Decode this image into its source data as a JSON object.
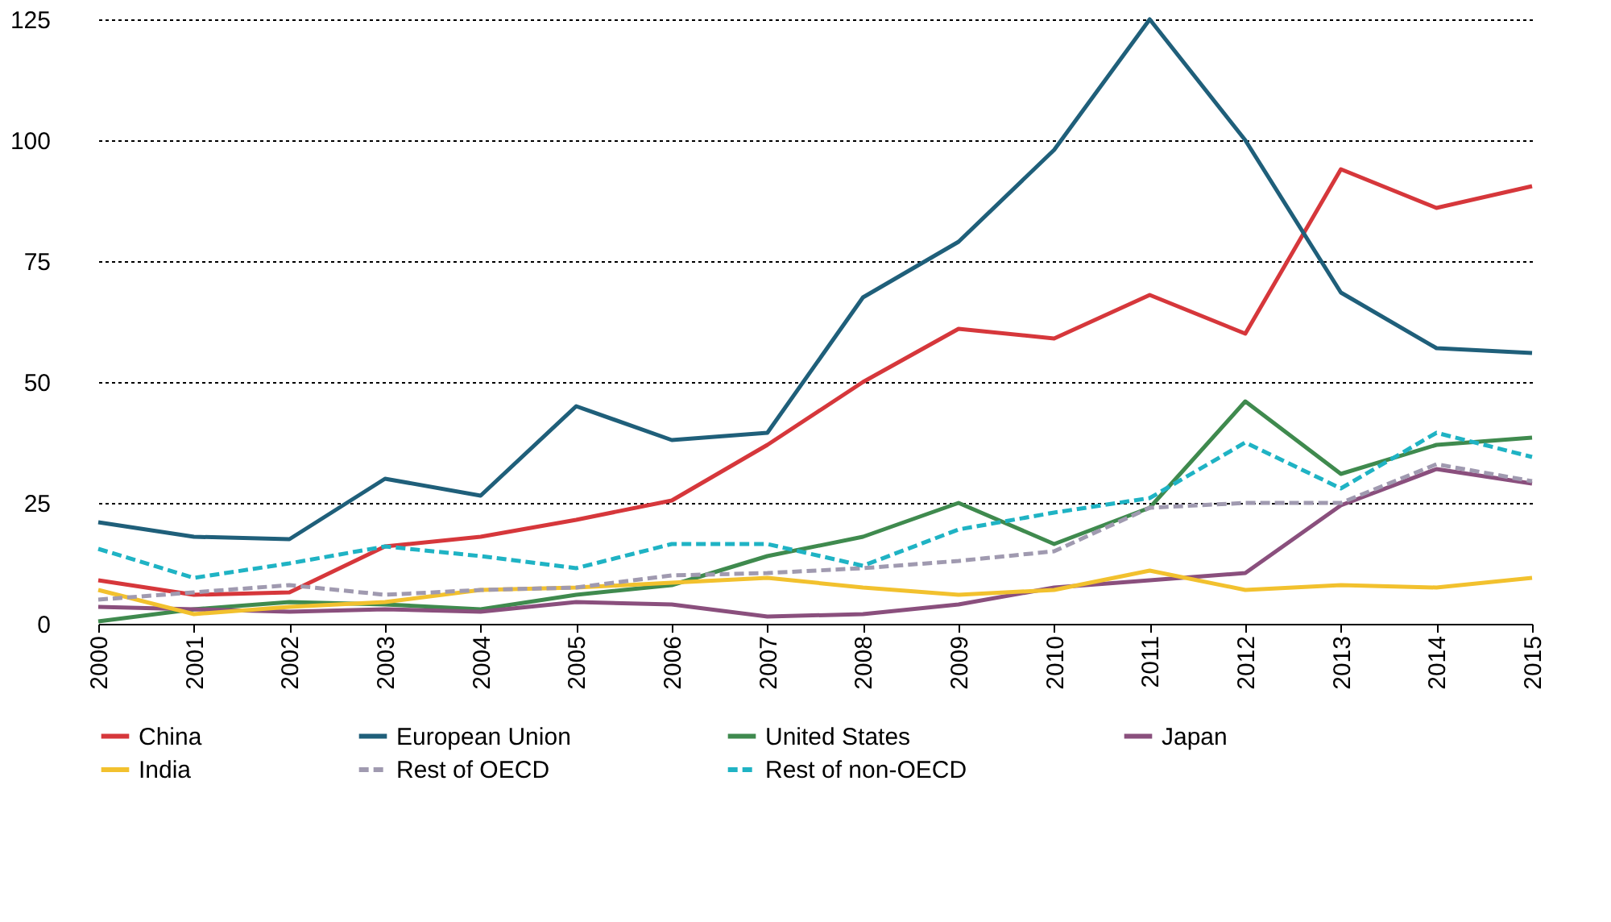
{
  "chart_data": {
    "type": "line",
    "categories": [
      "2000",
      "2001",
      "2002",
      "2003",
      "2004",
      "2005",
      "2006",
      "2007",
      "2008",
      "2009",
      "2010",
      "2011",
      "2012",
      "2013",
      "2014",
      "2015"
    ],
    "series": [
      {
        "name": "China",
        "color": "#d6373b",
        "line_style": "solid",
        "values": [
          9,
          6,
          6.5,
          16,
          18,
          21.5,
          25.5,
          37,
          50,
          61,
          59,
          68,
          60,
          94,
          86,
          90.5
        ]
      },
      {
        "name": "European Union",
        "color": "#1f5f7a",
        "line_style": "solid",
        "values": [
          21,
          18,
          17.5,
          30,
          26.5,
          45,
          38,
          39.5,
          67.5,
          79,
          98,
          125,
          100,
          68.5,
          57,
          56
        ]
      },
      {
        "name": "United States",
        "color": "#3f8a4e",
        "line_style": "solid",
        "values": [
          0.5,
          3,
          4.5,
          4,
          3,
          6,
          8,
          14,
          18,
          25,
          16.5,
          24,
          46,
          31,
          37,
          38.5
        ]
      },
      {
        "name": "Japan",
        "color": "#8a4f7d",
        "line_style": "solid",
        "values": [
          3.5,
          3,
          2.5,
          3,
          2.5,
          4.5,
          4,
          1.5,
          2,
          4,
          7.5,
          9,
          10.5,
          24.5,
          32,
          29
        ]
      },
      {
        "name": "India",
        "color": "#f2c12e",
        "line_style": "solid",
        "values": [
          7,
          2,
          3.5,
          4.5,
          7,
          7.5,
          8.5,
          9.5,
          7.5,
          6,
          7,
          11,
          7,
          8,
          7.5,
          9.5
        ]
      },
      {
        "name": "Rest of OECD",
        "color": "#a09ab0",
        "line_style": "dashed",
        "values": [
          5,
          6.5,
          8,
          6,
          7,
          7.5,
          10,
          10.5,
          11.5,
          13,
          15,
          24,
          25,
          25,
          33,
          29.5
        ]
      },
      {
        "name": "Rest of non-OECD",
        "color": "#1fb3c4",
        "line_style": "dashed",
        "values": [
          15.5,
          9.5,
          12.5,
          16,
          14,
          11.5,
          16.5,
          16.5,
          12,
          19.5,
          23,
          26,
          37.5,
          28,
          39.5,
          34.5
        ]
      }
    ],
    "ylim": [
      0,
      125
    ],
    "yticks": [
      0,
      25,
      50,
      75,
      100,
      125
    ],
    "grid": "y",
    "legend": "bottom",
    "marker": "none"
  }
}
